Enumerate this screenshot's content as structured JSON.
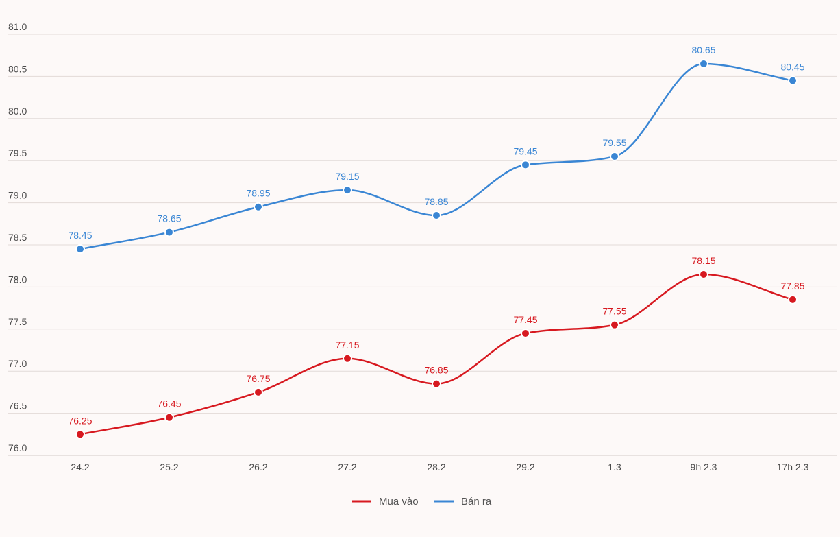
{
  "chart_data": {
    "type": "line",
    "categories": [
      "24.2",
      "25.2",
      "26.2",
      "27.2",
      "28.2",
      "29.2",
      "1.3",
      "9h 2.3",
      "17h 2.3"
    ],
    "series": [
      {
        "name": "Mua vào",
        "color": "#d71920",
        "values": [
          76.25,
          76.45,
          76.75,
          77.15,
          76.85,
          77.45,
          77.55,
          78.15,
          77.85
        ],
        "labels": [
          "76.25",
          "76.45",
          "76.75",
          "77.15",
          "76.85",
          "77.45",
          "77.55",
          "78.15",
          "77.85"
        ]
      },
      {
        "name": "Bán ra",
        "color": "#3a86d4",
        "values": [
          78.45,
          78.65,
          78.95,
          79.15,
          78.85,
          79.45,
          79.55,
          80.65,
          80.45
        ],
        "labels": [
          "78.45",
          "78.65",
          "78.95",
          "79.15",
          "78.85",
          "79.45",
          "79.55",
          "80.65",
          "80.45"
        ]
      }
    ],
    "ylim": [
      76.0,
      81.0
    ],
    "yticks": [
      "76.0",
      "76.5",
      "77.0",
      "77.5",
      "78.0",
      "78.5",
      "79.0",
      "79.5",
      "80.0",
      "80.5",
      "81.0"
    ],
    "grid": true,
    "smooth": true,
    "legend_position": "bottom-center",
    "title": "",
    "xlabel": "",
    "ylabel": ""
  }
}
